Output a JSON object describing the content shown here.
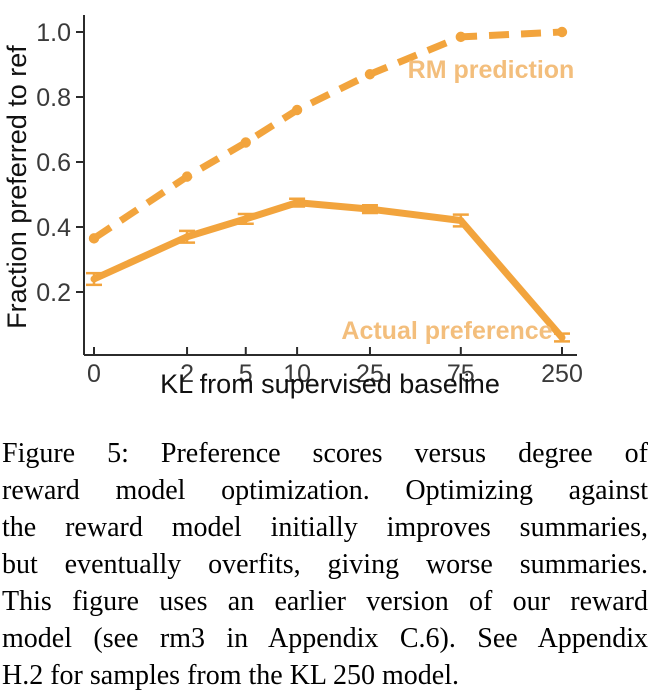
{
  "figure": {
    "caption_lines": [
      "Figure 5: Preference scores versus degree of",
      "reward model optimization. Optimizing against",
      "the reward model initially improves summaries,",
      "but eventually overfits, giving worse summaries.",
      "This figure uses an earlier version of our reward",
      "model (see rm3 in Appendix C.6). See Appendix",
      "H.2 for samples from the KL 250 model."
    ]
  },
  "chart_data": {
    "type": "line",
    "title": "",
    "xlabel": "KL from supervised baseline",
    "ylabel": "Fraction preferred to ref",
    "x_scale": "log1p",
    "x_ticks": [
      0,
      2,
      5,
      10,
      25,
      75,
      250
    ],
    "x_tick_labels": [
      "0",
      "2",
      "5",
      "10",
      "25",
      "75",
      "250"
    ],
    "y_ticks": [
      0.2,
      0.4,
      0.6,
      0.8,
      1.0
    ],
    "y_tick_labels": [
      "0.2",
      "0.4",
      "0.6",
      "0.8",
      "1.0"
    ],
    "xlim": [
      0,
      250
    ],
    "ylim": [
      0.0,
      1.02
    ],
    "grid": false,
    "legend_position": "inline-annotations",
    "series": [
      {
        "name": "RM prediction",
        "style": "dashed",
        "x": [
          0,
          2,
          5,
          10,
          25,
          75,
          250
        ],
        "values": [
          0.365,
          0.555,
          0.66,
          0.76,
          0.87,
          0.985,
          1.0
        ]
      },
      {
        "name": "Actual preference",
        "style": "solid",
        "x": [
          0,
          2,
          5,
          10,
          25,
          75,
          250
        ],
        "values": [
          0.24,
          0.37,
          0.425,
          0.475,
          0.455,
          0.42,
          0.06
        ],
        "errors": [
          0.018,
          0.018,
          0.015,
          0.012,
          0.012,
          0.018,
          0.012
        ]
      }
    ],
    "colors": {
      "line": "#F2A43D",
      "annotation_label": "#F3BE7C",
      "axis": "#2b2b2b",
      "tick_text": "#3a3a3a",
      "axis_label_text": "#111111"
    }
  }
}
